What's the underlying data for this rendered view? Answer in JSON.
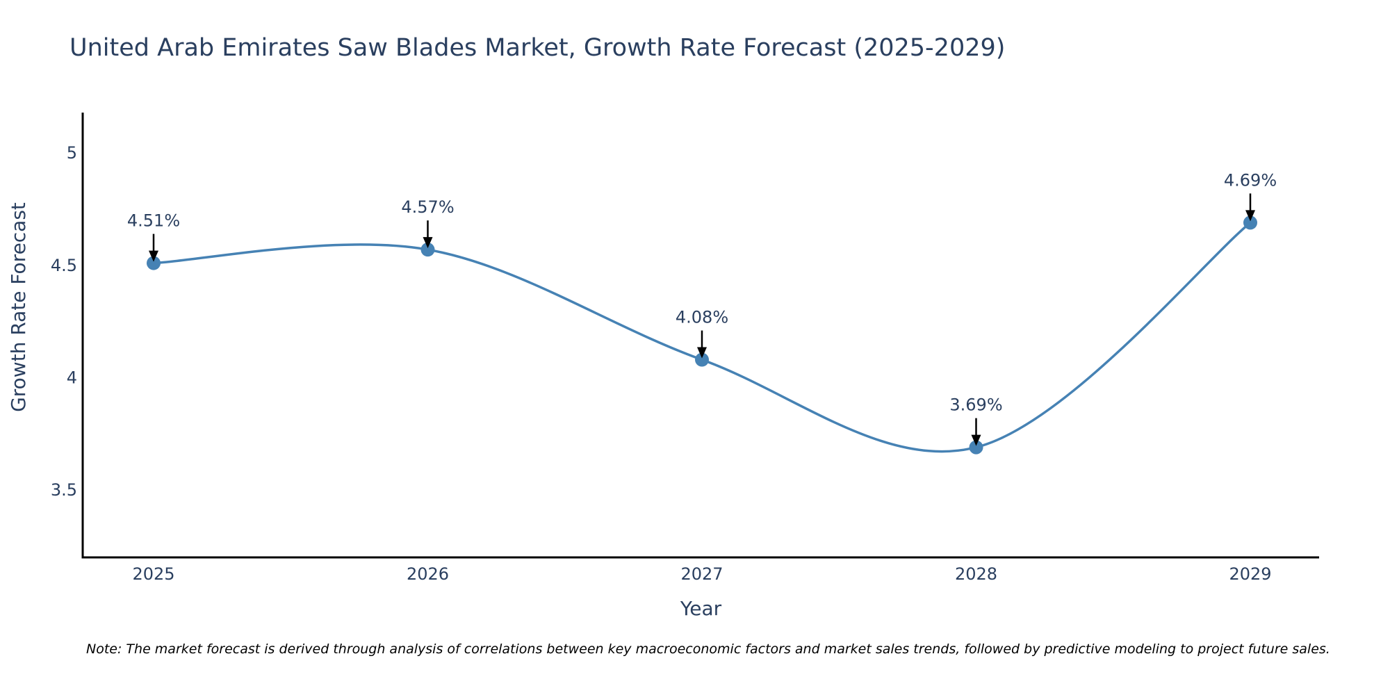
{
  "chart_data": {
    "type": "line",
    "title": "United Arab Emirates Saw Blades Market, Growth Rate Forecast (2025-2029)",
    "xlabel": "Year",
    "ylabel": "Growth Rate Forecast",
    "categories": [
      "2025",
      "2026",
      "2027",
      "2028",
      "2029"
    ],
    "series": [
      {
        "name": "Growth Rate Forecast",
        "values": [
          4.51,
          4.57,
          4.08,
          3.69,
          4.69
        ],
        "color": "#4682b4"
      }
    ],
    "data_labels": [
      "4.51%",
      "4.57%",
      "4.08%",
      "3.69%",
      "4.69%"
    ],
    "ylim": [
      3.2,
      5.18
    ],
    "yticks": [
      3.5,
      4,
      4.5,
      5
    ],
    "ytick_labels": [
      "3.5",
      "4",
      "4.5",
      "5"
    ],
    "grid": false,
    "line_shape": "spline",
    "markers": true
  },
  "note": "Note: The market forecast is derived through analysis of correlations between key macroeconomic factors and market sales trends, followed by predictive modeling to project future sales.",
  "colors": {
    "line": "#4682b4",
    "text": "#2a3f5f",
    "axis": "#000000",
    "arrow": "#000000"
  }
}
